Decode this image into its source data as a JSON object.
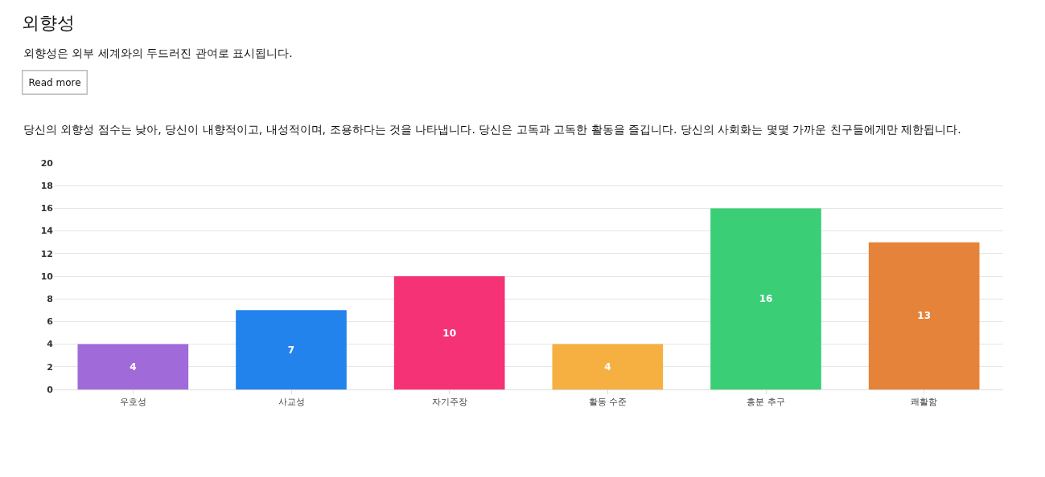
{
  "chart_data": {
    "type": "bar",
    "title": "외향성",
    "subtitle": "외향성은 외부 세계와의 두드러진 관여로 표시됩니다.",
    "annotations": [
      "Read more",
      "당신의 외향성 점수는 낮아, 당신이 내향적이고, 내성적이며, 조용하다는 것을 나타냅니다. 당신은 고독과 고독한 활동을 즐깁니다. 당신의 사회화는 몇몇 가까운 친구들에게만 제한됩니다."
    ],
    "categories": [
      "우호성",
      "사교성",
      "자기주장",
      "활동 수준",
      "흥분 추구",
      "쾌활함"
    ],
    "values": [
      4,
      7,
      10,
      4,
      16,
      13
    ],
    "colors": [
      "#a16ad9",
      "#2383ed",
      "#f53275",
      "#f5b041",
      "#3acf76",
      "#e6833a"
    ],
    "ylim": [
      0,
      20
    ],
    "yticks": [
      0,
      2,
      4,
      6,
      8,
      10,
      12,
      14,
      16,
      18,
      20
    ],
    "grid": "y",
    "data_labels": true,
    "legend": false
  }
}
